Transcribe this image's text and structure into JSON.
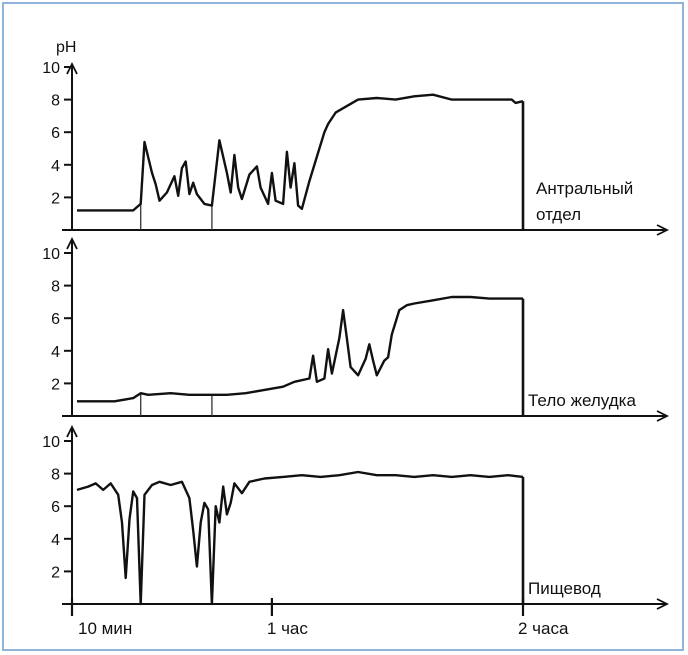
{
  "chart_data": {
    "type": "line",
    "y_unit_label": "pH",
    "xlim": [
      0,
      140
    ],
    "ylim": [
      0,
      10
    ],
    "y_ticks": [
      2,
      4,
      6,
      8,
      10
    ],
    "time_labels": [
      {
        "x": 0,
        "label": "10 мин"
      },
      {
        "x": 52,
        "label": "1 час"
      },
      {
        "x": 119,
        "label": "2 часа"
      }
    ],
    "panels": [
      {
        "name": "Антральный отдел",
        "label_lines": [
          "Антральный",
          "отдел"
        ],
        "markers": [
          17,
          36
        ],
        "end_x": 119,
        "points": [
          [
            0,
            1.2
          ],
          [
            10,
            1.2
          ],
          [
            15,
            1.2
          ],
          [
            17,
            1.6
          ],
          [
            18,
            5.4
          ],
          [
            20,
            3.5
          ],
          [
            21,
            2.8
          ],
          [
            22,
            1.8
          ],
          [
            24,
            2.3
          ],
          [
            26,
            3.3
          ],
          [
            27,
            2.1
          ],
          [
            28,
            3.8
          ],
          [
            29,
            4.2
          ],
          [
            30,
            2.2
          ],
          [
            31,
            2.9
          ],
          [
            32,
            2.2
          ],
          [
            34,
            1.6
          ],
          [
            36,
            1.5
          ],
          [
            38,
            5.5
          ],
          [
            40,
            3.5
          ],
          [
            41,
            2.3
          ],
          [
            42,
            4.6
          ],
          [
            43,
            2.6
          ],
          [
            44,
            1.9
          ],
          [
            46,
            3.4
          ],
          [
            48,
            3.9
          ],
          [
            49,
            2.6
          ],
          [
            51,
            1.6
          ],
          [
            52,
            3.5
          ],
          [
            53,
            1.8
          ],
          [
            55,
            1.6
          ],
          [
            56,
            4.8
          ],
          [
            57,
            2.6
          ],
          [
            58,
            4.1
          ],
          [
            59,
            1.5
          ],
          [
            60,
            1.3
          ],
          [
            62,
            3.0
          ],
          [
            64,
            4.5
          ],
          [
            66,
            6.0
          ],
          [
            67,
            6.5
          ],
          [
            69,
            7.2
          ],
          [
            72,
            7.6
          ],
          [
            75,
            8.0
          ],
          [
            80,
            8.1
          ],
          [
            85,
            8.0
          ],
          [
            90,
            8.2
          ],
          [
            95,
            8.3
          ],
          [
            100,
            8.0
          ],
          [
            110,
            8.0
          ],
          [
            116,
            8.0
          ],
          [
            117,
            7.8
          ],
          [
            119,
            7.9
          ]
        ]
      },
      {
        "name": "Тело желудка",
        "label_lines": [
          "Тело желудка"
        ],
        "markers": [
          17,
          36
        ],
        "end_x": 119,
        "points": [
          [
            0,
            0.9
          ],
          [
            5,
            0.9
          ],
          [
            10,
            0.9
          ],
          [
            15,
            1.1
          ],
          [
            17,
            1.4
          ],
          [
            19,
            1.3
          ],
          [
            25,
            1.4
          ],
          [
            30,
            1.3
          ],
          [
            36,
            1.3
          ],
          [
            40,
            1.3
          ],
          [
            45,
            1.4
          ],
          [
            50,
            1.6
          ],
          [
            55,
            1.8
          ],
          [
            58,
            2.1
          ],
          [
            62,
            2.3
          ],
          [
            63,
            3.7
          ],
          [
            64,
            2.1
          ],
          [
            66,
            2.3
          ],
          [
            67,
            4.1
          ],
          [
            68,
            2.6
          ],
          [
            70,
            4.8
          ],
          [
            71,
            6.5
          ],
          [
            72,
            4.8
          ],
          [
            73,
            3.0
          ],
          [
            75,
            2.5
          ],
          [
            77,
            3.5
          ],
          [
            78,
            4.4
          ],
          [
            79,
            3.4
          ],
          [
            80,
            2.5
          ],
          [
            82,
            3.4
          ],
          [
            83,
            3.6
          ],
          [
            84,
            5.0
          ],
          [
            86,
            6.5
          ],
          [
            88,
            6.8
          ],
          [
            90,
            6.9
          ],
          [
            95,
            7.1
          ],
          [
            100,
            7.3
          ],
          [
            105,
            7.3
          ],
          [
            110,
            7.2
          ],
          [
            115,
            7.2
          ],
          [
            119,
            7.2
          ]
        ]
      },
      {
        "name": "Пищевод",
        "label_lines": [
          "Пищевод"
        ],
        "markers": [
          17,
          36
        ],
        "end_x": 119,
        "points": [
          [
            0,
            7.0
          ],
          [
            3,
            7.2
          ],
          [
            5,
            7.4
          ],
          [
            7,
            7.0
          ],
          [
            9,
            7.4
          ],
          [
            11,
            6.7
          ],
          [
            12,
            5.0
          ],
          [
            13,
            1.6
          ],
          [
            14,
            5.2
          ],
          [
            15,
            6.9
          ],
          [
            16,
            6.5
          ],
          [
            17,
            0
          ],
          [
            18,
            6.7
          ],
          [
            20,
            7.3
          ],
          [
            22,
            7.5
          ],
          [
            25,
            7.3
          ],
          [
            28,
            7.5
          ],
          [
            30,
            6.5
          ],
          [
            31,
            4.5
          ],
          [
            32,
            2.3
          ],
          [
            33,
            5.0
          ],
          [
            34,
            6.2
          ],
          [
            35,
            5.8
          ],
          [
            36,
            0
          ],
          [
            37,
            6.0
          ],
          [
            38,
            5.0
          ],
          [
            39,
            7.2
          ],
          [
            40,
            5.5
          ],
          [
            41,
            6.2
          ],
          [
            42,
            7.4
          ],
          [
            44,
            6.8
          ],
          [
            46,
            7.5
          ],
          [
            50,
            7.7
          ],
          [
            55,
            7.8
          ],
          [
            60,
            7.9
          ],
          [
            65,
            7.8
          ],
          [
            70,
            7.9
          ],
          [
            75,
            8.1
          ],
          [
            80,
            7.9
          ],
          [
            85,
            7.9
          ],
          [
            90,
            7.8
          ],
          [
            95,
            7.9
          ],
          [
            100,
            7.8
          ],
          [
            105,
            7.9
          ],
          [
            110,
            7.8
          ],
          [
            115,
            7.9
          ],
          [
            119,
            7.8
          ]
        ]
      }
    ]
  }
}
